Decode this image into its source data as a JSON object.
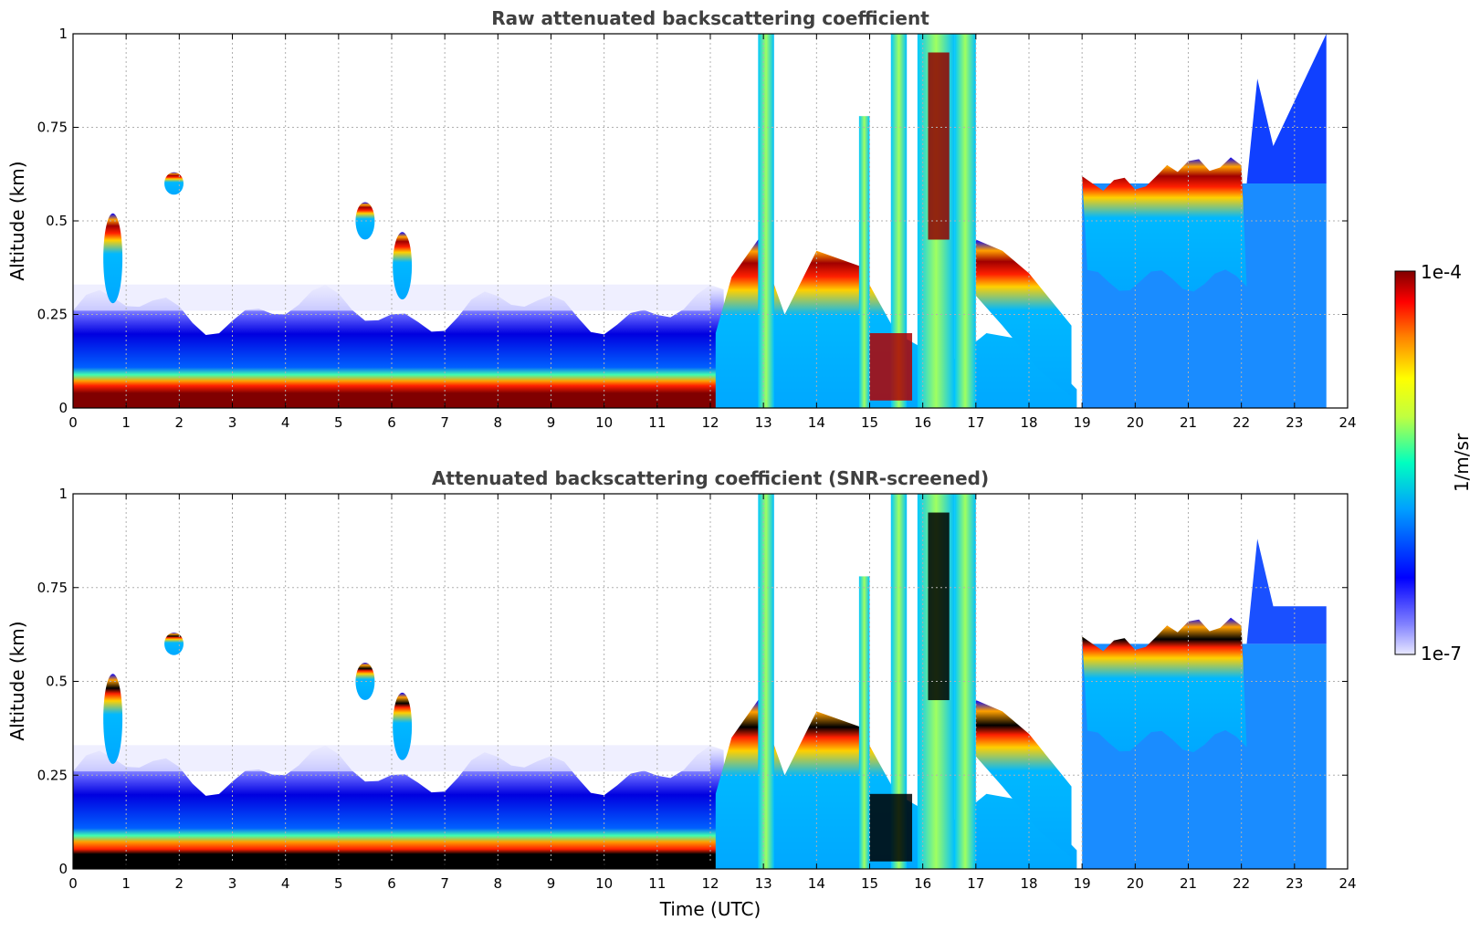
{
  "chart_data": [
    {
      "type": "heatmap",
      "title": "Raw attenuated backscattering coefficient",
      "xlabel": "",
      "ylabel": "Altitude (km)",
      "xlim": [
        0,
        24
      ],
      "ylim": [
        0,
        1
      ],
      "x_ticks": [
        "0",
        "1",
        "2",
        "3",
        "4",
        "5",
        "6",
        "7",
        "8",
        "9",
        "10",
        "11",
        "12",
        "13",
        "14",
        "15",
        "16",
        "17",
        "18",
        "19",
        "20",
        "21",
        "22",
        "23",
        "24"
      ],
      "y_ticks": [
        "0",
        "0.25",
        "0.5",
        "0.75",
        "1"
      ],
      "grid": true
    },
    {
      "type": "heatmap",
      "title": "Attenuated backscattering coefficient (SNR-screened)",
      "xlabel": "Time (UTC)",
      "ylabel": "Altitude (km)",
      "xlim": [
        0,
        24
      ],
      "ylim": [
        0,
        1
      ],
      "x_ticks": [
        "0",
        "1",
        "2",
        "3",
        "4",
        "5",
        "6",
        "7",
        "8",
        "9",
        "10",
        "11",
        "12",
        "13",
        "14",
        "15",
        "16",
        "17",
        "18",
        "19",
        "20",
        "21",
        "22",
        "23",
        "24"
      ],
      "y_ticks": [
        "0",
        "0.25",
        "0.5",
        "0.75",
        "1"
      ],
      "grid": true
    }
  ],
  "colorbar": {
    "label": "1/m/sr",
    "max_label": "1e-4",
    "min_label": "1e-7",
    "scale": "log",
    "colors": [
      "#e8e8ff",
      "#0000ff",
      "#00c8ff",
      "#00ffa0",
      "#ffff00",
      "#ff8000",
      "#ff0000",
      "#800000"
    ]
  }
}
